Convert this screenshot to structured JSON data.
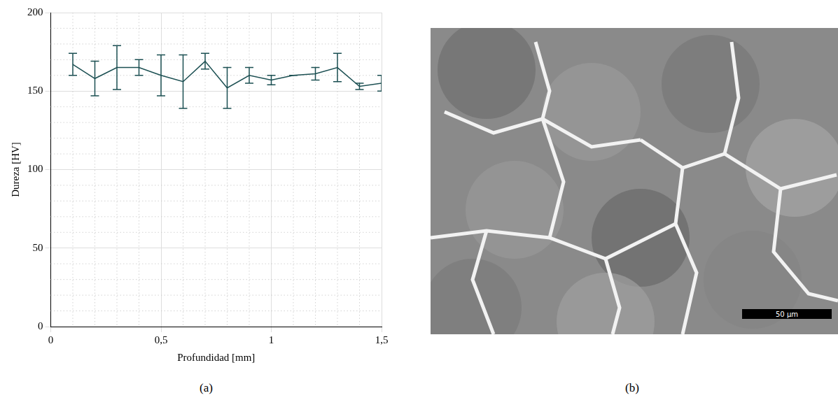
{
  "chart_data": {
    "type": "line",
    "x_label": "Profundidad [mm]",
    "y_label": "Dureza [HV]",
    "x": [
      0.1,
      0.2,
      0.3,
      0.4,
      0.5,
      0.6,
      0.7,
      0.8,
      0.9,
      1.0,
      1.1,
      1.2,
      1.3,
      1.4,
      1.5
    ],
    "values": [
      167,
      158,
      165,
      165,
      160,
      156,
      169,
      152,
      160,
      157,
      160,
      161,
      165,
      153,
      155
    ],
    "error": [
      7,
      11,
      14,
      5,
      13,
      17,
      5,
      13,
      5,
      3,
      0,
      4,
      9,
      2,
      5
    ],
    "color": "#1b4f52",
    "xlim": [
      0,
      1.5
    ],
    "xticks": [
      0,
      {
        "value": 0.5,
        "label": "0,5"
      },
      1,
      {
        "value": 1.5,
        "label": "1,5"
      }
    ],
    "ylim": [
      0,
      200
    ],
    "yticks": [
      0,
      50,
      100,
      150,
      200
    ],
    "grid": true
  },
  "panel_labels": [
    "(a)",
    "(b)"
  ],
  "micrograph": {
    "scale_bar_label": "50 µm"
  }
}
